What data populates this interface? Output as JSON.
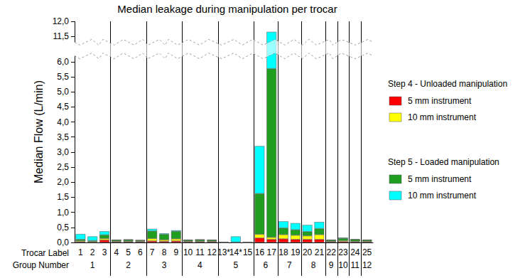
{
  "chart_data": {
    "type": "bar",
    "title": "Median leakage during manipulation per trocar",
    "y_label": "Median Flow (L/min)",
    "x_row_labels": [
      "Trocar Label",
      "Group Number"
    ],
    "categories": [
      "1",
      "2",
      "3",
      "4",
      "5",
      "6",
      "7",
      "8",
      "9",
      "10",
      "11",
      "12",
      "13*",
      "14*",
      "15",
      "16",
      "17",
      "18",
      "19",
      "20",
      "21",
      "22",
      "23",
      "24",
      "25"
    ],
    "groups": [
      {
        "label": "1",
        "count": 3
      },
      {
        "label": "2",
        "count": 3
      },
      {
        "label": "3",
        "count": 3
      },
      {
        "label": "4",
        "count": 3
      },
      {
        "label": "5",
        "count": 3
      },
      {
        "label": "6",
        "count": 2
      },
      {
        "label": "7",
        "count": 2
      },
      {
        "label": "8",
        "count": 2
      },
      {
        "label": "9",
        "count": 1
      },
      {
        "label": "10",
        "count": 1
      },
      {
        "label": "11",
        "count": 1
      },
      {
        "label": "12",
        "count": 1
      }
    ],
    "series": [
      {
        "name": "5 mm instrument",
        "group": "Step 4 - Unloaded manipulation",
        "color": "#ff0000",
        "values": [
          0.02,
          0.01,
          0.08,
          0.02,
          0.02,
          0.02,
          0.05,
          0.04,
          0.05,
          0.02,
          0.02,
          0.02,
          0,
          0,
          0,
          0.15,
          0.1,
          0.12,
          0.1,
          0.1,
          0.1,
          0.02,
          0.03,
          0.02,
          0.02
        ]
      },
      {
        "name": "10 mm instrument",
        "group": "Step 4 - Unloaded manipulation",
        "color": "#ffff00",
        "values": [
          0.03,
          0.02,
          0.05,
          0.02,
          0.02,
          0.02,
          0.08,
          0.05,
          0.07,
          0.02,
          0.02,
          0.02,
          0,
          0,
          0,
          0.12,
          0.07,
          0.14,
          0.14,
          0.12,
          0.16,
          0.02,
          0.03,
          0.02,
          0.02
        ]
      },
      {
        "name": "5 mm instrument",
        "group": "Step 5 - Loaded manipulation",
        "color": "#1f9e1f",
        "values": [
          0.05,
          0.03,
          0.12,
          0.04,
          0.05,
          0.03,
          0.25,
          0.18,
          0.25,
          0.04,
          0.05,
          0.04,
          0,
          0.01,
          0,
          1.35,
          5.6,
          0.22,
          0.18,
          0.14,
          0.2,
          0.04,
          0.08,
          0.06,
          0.04
        ]
      },
      {
        "name": "10 mm instrument",
        "group": "Step 5 - Loaded manipulation",
        "color": "#00ffff",
        "values": [
          0.18,
          0.14,
          0.12,
          0.01,
          0.01,
          0.01,
          0.07,
          0.03,
          0.03,
          0.01,
          0.01,
          0.01,
          0,
          0.19,
          0,
          1.58,
          5.88,
          0.22,
          0.22,
          0.22,
          0.22,
          0.01,
          0.02,
          0.01,
          0.01
        ]
      }
    ],
    "stacked": true,
    "ylim": [
      0,
      12
    ],
    "ybreak": [
      6.2,
      11.3
    ],
    "yticks": [
      {
        "value": 0,
        "label": "0,0"
      },
      {
        "value": 0.5,
        "label": "0,5"
      },
      {
        "value": 1,
        "label": "1,0"
      },
      {
        "value": 1.5,
        "label": "1,5"
      },
      {
        "value": 2,
        "label": "2,0"
      },
      {
        "value": 2.5,
        "label": "2,5"
      },
      {
        "value": 3,
        "label": "3,0"
      },
      {
        "value": 3.5,
        "label": "3,5"
      },
      {
        "value": 4,
        "label": "4,0"
      },
      {
        "value": 4.5,
        "label": "4,5"
      },
      {
        "value": 5,
        "label": "5,0"
      },
      {
        "value": 5.5,
        "label": "5,5"
      },
      {
        "value": 6,
        "label": "6,0"
      },
      {
        "value": 11.5,
        "label": "11,5"
      },
      {
        "value": 12,
        "label": "12,0"
      }
    ],
    "grid": false
  }
}
